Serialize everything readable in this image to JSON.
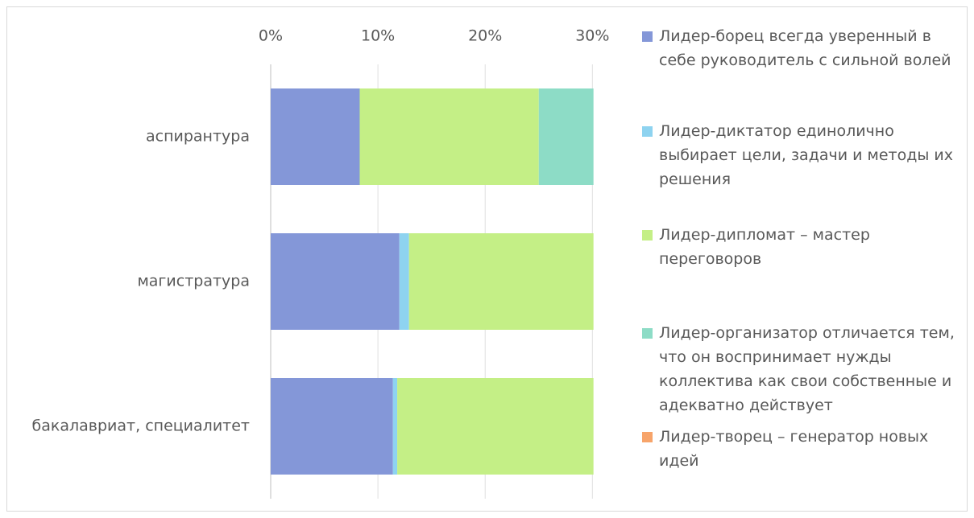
{
  "chart_data": {
    "type": "stacked-barh",
    "categories": [
      "аспирантура",
      "магистратура",
      "бакалавриат, специалитет"
    ],
    "series": [
      {
        "name": "Лидер-борец всегда уверенный в себе руководитель с сильной волей",
        "color": "#8497d8",
        "values": [
          8.3,
          12.0,
          11.4
        ]
      },
      {
        "name": "Лидер-диктатор единолично выбирает цели, задачи и методы их решения",
        "color": "#8ed3f0",
        "values": [
          0,
          0.9,
          0.4
        ]
      },
      {
        "name": "Лидер-дипломат – мастер переговоров",
        "color": "#c4ef86",
        "values": [
          16.7,
          17.2,
          18.3
        ]
      },
      {
        "name": "Лидер-организатор отличается тем, что он воспринимает нужды коллектива как свои собственные и адекватно действует",
        "color": "#8ddcc6",
        "values": [
          5.1,
          0,
          0
        ]
      },
      {
        "name": "Лидер-творец – генератор новых идей",
        "color": "#f7a46a",
        "values": [
          0,
          0,
          0
        ]
      }
    ],
    "xlim": [
      0,
      30.2
    ],
    "xticks": [
      {
        "value": 0,
        "label": "0%"
      },
      {
        "value": 10,
        "label": "10%"
      },
      {
        "value": 20,
        "label": "20%"
      },
      {
        "value": 30,
        "label": "30%"
      }
    ],
    "grid": true,
    "legend": "right"
  }
}
